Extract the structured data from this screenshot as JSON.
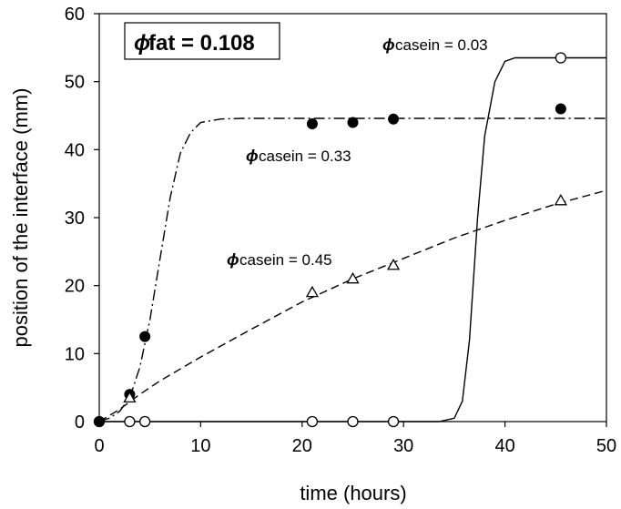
{
  "chart_data": {
    "type": "scatter",
    "title": "",
    "xlabel": "time (hours)",
    "ylabel": "position of the interface (mm)",
    "xlim": [
      0,
      50
    ],
    "ylim": [
      0,
      60
    ],
    "x_ticks": [
      "0",
      "10",
      "20",
      "30",
      "40",
      "50"
    ],
    "y_ticks": [
      "0",
      "10",
      "20",
      "30",
      "40",
      "50",
      "60"
    ],
    "grid": false,
    "legend_box": {
      "symbol": "ϕ",
      "text": "fat = 0.108"
    },
    "annotations": [
      {
        "symbol": "ϕ",
        "text": "casein = 0.03",
        "series": "casein 0.03"
      },
      {
        "symbol": "ϕ",
        "text": "casein = 0.33",
        "series": "casein 0.33"
      },
      {
        "symbol": "ϕ",
        "text": "casein = 0.45",
        "series": "casein 0.45"
      }
    ],
    "series": [
      {
        "key": "c003",
        "marker": "open-circle",
        "line_style": "solid",
        "points": [
          [
            0,
            0
          ],
          [
            3,
            0
          ],
          [
            4.5,
            0
          ],
          [
            21,
            0
          ],
          [
            25,
            0
          ],
          [
            29,
            0
          ],
          [
            45.5,
            53.5
          ]
        ],
        "curve": [
          [
            0,
            0
          ],
          [
            33.5,
            0
          ],
          [
            35,
            0.5
          ],
          [
            35.8,
            3
          ],
          [
            36.5,
            12
          ],
          [
            37.3,
            30
          ],
          [
            38,
            42
          ],
          [
            39,
            50
          ],
          [
            40,
            53
          ],
          [
            41,
            53.5
          ],
          [
            50,
            53.5
          ]
        ]
      },
      {
        "key": "c033",
        "marker": "filled-circle",
        "line_style": "dash-dot",
        "points": [
          [
            0,
            0
          ],
          [
            3,
            4
          ],
          [
            4.5,
            12.5
          ],
          [
            21,
            43.8
          ],
          [
            25,
            44
          ],
          [
            29,
            44.5
          ],
          [
            45.5,
            46
          ]
        ],
        "curve": [
          [
            0,
            0
          ],
          [
            1,
            0.5
          ],
          [
            2,
            1.5
          ],
          [
            3,
            3.5
          ],
          [
            4,
            8
          ],
          [
            5,
            15
          ],
          [
            6,
            24
          ],
          [
            7,
            33
          ],
          [
            8,
            39.5
          ],
          [
            9,
            42.5
          ],
          [
            10,
            44
          ],
          [
            12,
            44.5
          ],
          [
            14,
            44.6
          ],
          [
            50,
            44.6
          ]
        ]
      },
      {
        "key": "c045",
        "marker": "open-triangle",
        "line_style": "dashed",
        "points": [
          [
            3,
            3.5
          ],
          [
            21,
            19
          ],
          [
            25,
            21
          ],
          [
            29,
            23
          ],
          [
            45.5,
            32.5
          ]
        ],
        "curve": [
          [
            0,
            0
          ],
          [
            2,
            1.8
          ],
          [
            4,
            4
          ],
          [
            6,
            6
          ],
          [
            10,
            9.5
          ],
          [
            15,
            13.6
          ],
          [
            20,
            17.6
          ],
          [
            25,
            21
          ],
          [
            30,
            24
          ],
          [
            35,
            27
          ],
          [
            40,
            29.6
          ],
          [
            45,
            32
          ],
          [
            50,
            34
          ]
        ]
      }
    ]
  }
}
